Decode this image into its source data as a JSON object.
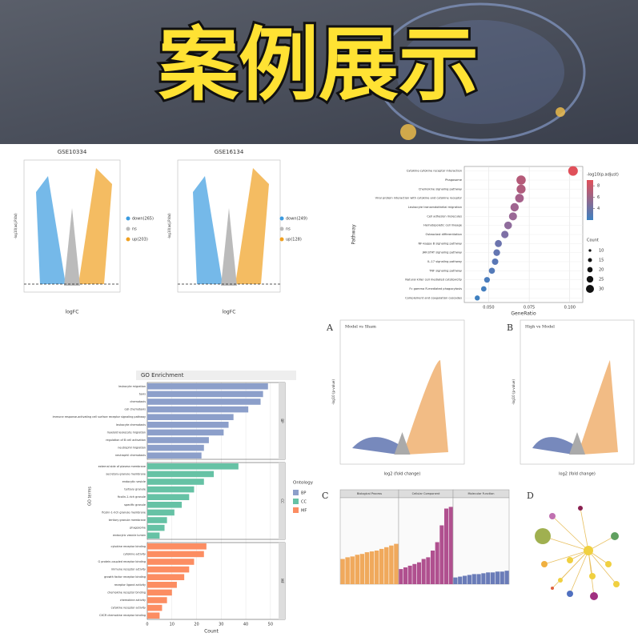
{
  "banner": {
    "title": "案例展示"
  },
  "volcanoes": [
    {
      "title": "GSE10334",
      "x_label": "logFC",
      "y_label": "-log10(adj.P.Val)",
      "legend": [
        "down(265)",
        "ns",
        "up(203)"
      ]
    },
    {
      "title": "GSE16134",
      "x_label": "logFC",
      "y_label": "-log10(adj.P.Val)",
      "legend": [
        "down(249)",
        "ns",
        "up(128)"
      ]
    },
    {
      "letter": "A",
      "title": "Model vs Sham",
      "x_label": "log2 (fold change)",
      "y_label": "-log10 (p-value)"
    },
    {
      "letter": "B",
      "title": "High vs Model",
      "x_label": "log2 (fold change)",
      "y_label": "-log10 (p-value)"
    }
  ],
  "network": {
    "letter": "D"
  },
  "chart_data": [
    {
      "type": "scatter",
      "x_label": "GeneRatio",
      "y_label": "Pathway",
      "categories": [
        "Cytokine-cytokine receptor interaction",
        "Phagosome",
        "Chemokine signaling pathway",
        "Viral protein interaction with cytokine and cytokine receptor",
        "Leukocyte transendothelial migration",
        "Cell adhesion molecules",
        "Hematopoietic cell lineage",
        "Osteoclast differentiation",
        "NF-kappa B signaling pathway",
        "JAK-STAT signaling pathway",
        "IL-17 signaling pathway",
        "TNF signaling pathway",
        "Natural killer cell mediated cytotoxicity",
        "Fc gamma R-mediated phagocytosis",
        "Complement and coagulation cascades"
      ],
      "values": [
        0.102,
        0.07,
        0.07,
        0.069,
        0.066,
        0.065,
        0.062,
        0.06,
        0.056,
        0.055,
        0.054,
        0.052,
        0.049,
        0.047,
        0.043
      ],
      "colors": [
        "#e0505a",
        "#b55a78",
        "#b05c7c",
        "#a6608a",
        "#a06490",
        "#9a6896",
        "#8f6c9c",
        "#7e70a6",
        "#6c74ae",
        "#6476b2",
        "#5a78b6",
        "#547ab8",
        "#4a7cbc",
        "#447ebe",
        "#3e80c0"
      ],
      "xlim": [
        0.035,
        0.108
      ],
      "xticks": [
        {
          "value": 0.05,
          "label": "0.050"
        },
        {
          "value": 0.075,
          "label": "0.075"
        },
        {
          "value": 0.1,
          "label": "0.100"
        }
      ],
      "color_legend_title": "-log10(p.adjust)",
      "color_ticks": [
        4,
        6,
        8
      ],
      "size_legend_title": "Count",
      "size_ticks": [
        10,
        15,
        20,
        25,
        30
      ]
    },
    {
      "type": "barh",
      "title": "GO Enrichment",
      "x_label": "Count",
      "y_label": "GO terms",
      "legend_title": "Ontology",
      "xlim": [
        0,
        52
      ],
      "xticks": [
        0,
        10,
        20,
        30,
        40,
        50
      ],
      "series": [
        {
          "name": "BP",
          "color": "#8c9fca",
          "categories": [
            "leukocyte migration",
            "taxis",
            "chemotaxis",
            "cell chemotaxis",
            "immune response-activating cell surface receptor signaling pathway",
            "leukocyte chemotaxis",
            "myeloid leukocyte migration",
            "regulation of B cell activation",
            "neutrophil migration",
            "neutrophil chemotaxis"
          ],
          "values": [
            49,
            47,
            46,
            41,
            35,
            33,
            31,
            25,
            23,
            22
          ]
        },
        {
          "name": "CC",
          "color": "#66c2a5",
          "categories": [
            "external side of plasma membrane",
            "secretory granule membrane",
            "endocytic vesicle",
            "tertiary granule",
            "ficolin-1-rich granule",
            "specific granule",
            "ficolin-1-rich granule membrane",
            "tertiary granule membrane",
            "phagosome",
            "endocytic vesicle lumen"
          ],
          "values": [
            37,
            27,
            23,
            19,
            17,
            14,
            11,
            8,
            7,
            5
          ]
        },
        {
          "name": "MF",
          "color": "#fc8d62",
          "categories": [
            "cytokine receptor binding",
            "cytokine activity",
            "G protein-coupled receptor binding",
            "immune receptor activity",
            "growth factor receptor binding",
            "receptor ligand activity",
            "chemokine receptor binding",
            "chemokine activity",
            "cytokine receptor activity",
            "CXCR chemokine receptor binding"
          ],
          "values": [
            24,
            23,
            19,
            17,
            15,
            12,
            10,
            8,
            6,
            5
          ]
        }
      ]
    },
    {
      "type": "bar",
      "letter": "C",
      "ylim": [
        0,
        10
      ],
      "series": [
        {
          "name": "Biological Process",
          "color": "#f0a95c",
          "values": [
            3.0,
            3.2,
            3.3,
            3.5,
            3.6,
            3.8,
            3.9,
            4.0,
            4.2,
            4.4,
            4.6,
            4.8
          ]
        },
        {
          "name": "Cellular Component",
          "color": "#b0508f",
          "values": [
            1.8,
            2.0,
            2.2,
            2.4,
            2.6,
            3.0,
            3.2,
            4.0,
            5.0,
            7.0,
            9.0,
            9.2
          ]
        },
        {
          "name": "Molecular Function",
          "color": "#6a7cb8",
          "values": [
            0.8,
            0.9,
            1.0,
            1.1,
            1.2,
            1.2,
            1.3,
            1.4,
            1.4,
            1.5,
            1.5,
            1.6
          ]
        }
      ]
    }
  ]
}
